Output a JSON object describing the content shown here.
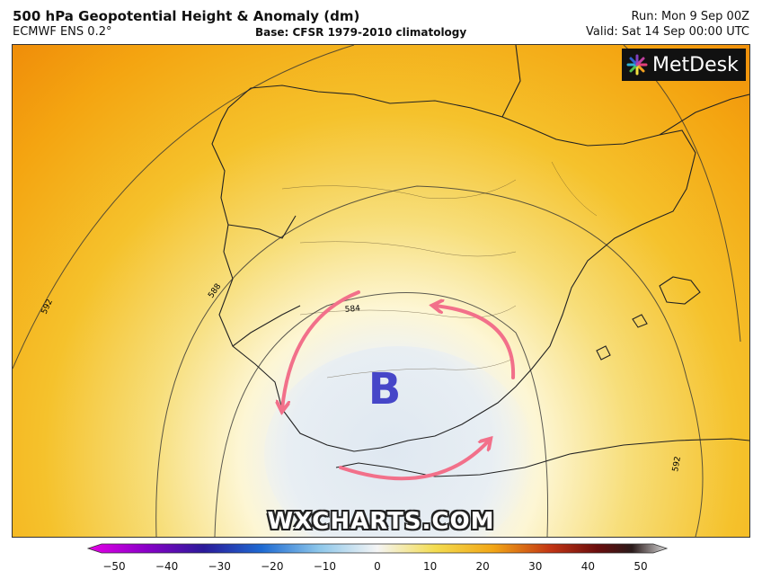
{
  "header": {
    "title": "500 hPa Geopotential Height & Anomaly (dm)",
    "model": "ECMWF ENS 0.2°",
    "base": "Base: CFSR 1979-2010 climatology",
    "run": "Run: Mon 9 Sep 00Z",
    "valid": "Valid: Sat 14 Sep 00:00 UTC"
  },
  "logo": {
    "text": "MetDesk",
    "icon": "metdesk-swirl-icon"
  },
  "watermark": "WXCHARTS.COM",
  "low_label": "B",
  "contours": [
    {
      "label": "592"
    },
    {
      "label": "588"
    },
    {
      "label": "584"
    },
    {
      "label": "592"
    }
  ],
  "colors": {
    "low_marker": "#4646c8",
    "arrows": "#f2708a",
    "anomaly_neg": "#e8eef4",
    "anomaly_zero": "#fdf6d0",
    "anomaly_pos": "#f5a000",
    "anomaly_strong": "#ee6a00"
  },
  "colorbar": {
    "ticks": [
      "−50",
      "−40",
      "−30",
      "−20",
      "−10",
      "0",
      "10",
      "20",
      "30",
      "40",
      "50"
    ],
    "min": -50,
    "max": 50
  }
}
